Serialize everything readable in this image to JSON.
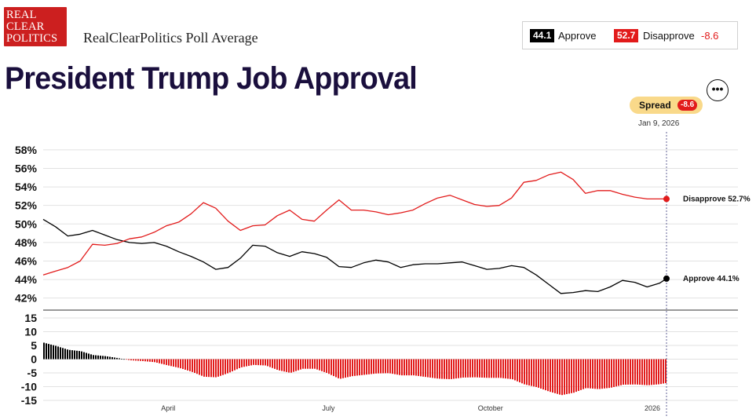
{
  "header": {
    "logo_lines": [
      "REAL",
      "CLEAR",
      "POLITICS"
    ],
    "subtitle": "RealClearPolitics Poll Average",
    "title": "President Trump Job Approval"
  },
  "legend": {
    "approve_value": "44.1",
    "approve_label": "Approve",
    "disapprove_value": "52.7",
    "disapprove_label": "Disapprove",
    "spread_value": "-8.6"
  },
  "spread_pill": {
    "label": "Spread",
    "value": "-8.6"
  },
  "current_date": "Jan 9, 2026",
  "colors": {
    "approve": "#000000",
    "disapprove": "#e21b1b",
    "title": "#1a0f3d",
    "pill": "#f9d98a"
  },
  "icons": {
    "menu": "more-horizontal-icon"
  },
  "chart_data": {
    "type": "line",
    "x_ticks": [
      "April",
      "July",
      "October",
      "2026"
    ],
    "x": [
      "2025-01-20",
      "2025-01-27",
      "2025-02-03",
      "2025-02-10",
      "2025-02-17",
      "2025-02-24",
      "2025-03-03",
      "2025-03-10",
      "2025-03-17",
      "2025-03-24",
      "2025-03-31",
      "2025-04-07",
      "2025-04-14",
      "2025-04-21",
      "2025-04-28",
      "2025-05-05",
      "2025-05-12",
      "2025-05-19",
      "2025-05-26",
      "2025-06-02",
      "2025-06-09",
      "2025-06-16",
      "2025-06-23",
      "2025-06-30",
      "2025-07-07",
      "2025-07-14",
      "2025-07-21",
      "2025-07-28",
      "2025-08-04",
      "2025-08-11",
      "2025-08-18",
      "2025-08-25",
      "2025-09-01",
      "2025-09-08",
      "2025-09-15",
      "2025-09-22",
      "2025-09-29",
      "2025-10-06",
      "2025-10-13",
      "2025-10-20",
      "2025-10-27",
      "2025-11-03",
      "2025-11-10",
      "2025-11-17",
      "2025-11-24",
      "2025-12-01",
      "2025-12-08",
      "2025-12-15",
      "2025-12-22",
      "2025-12-29",
      "2026-01-05",
      "2026-01-09"
    ],
    "series": [
      {
        "name": "Approve",
        "end_label": "Approve 44.1%",
        "color": "#000000",
        "values": [
          50.5,
          49.7,
          48.7,
          48.9,
          49.3,
          48.8,
          48.3,
          48.0,
          47.9,
          48.0,
          47.6,
          47.0,
          46.5,
          45.9,
          45.1,
          45.3,
          46.3,
          47.7,
          47.6,
          46.9,
          46.5,
          47.0,
          46.8,
          46.4,
          45.4,
          45.3,
          45.8,
          46.1,
          45.9,
          45.3,
          45.6,
          45.7,
          45.7,
          45.8,
          45.9,
          45.5,
          45.1,
          45.2,
          45.5,
          45.3,
          44.5,
          43.5,
          42.5,
          42.6,
          42.8,
          42.7,
          43.2,
          43.9,
          43.7,
          43.2,
          43.6,
          44.1
        ]
      },
      {
        "name": "Disapprove",
        "end_label": "Disapprove 52.7%",
        "color": "#e21b1b",
        "values": [
          44.5,
          44.9,
          45.3,
          46.0,
          47.8,
          47.7,
          47.9,
          48.4,
          48.6,
          49.1,
          49.8,
          50.2,
          51.1,
          52.3,
          51.7,
          50.3,
          49.3,
          49.8,
          49.9,
          50.9,
          51.5,
          50.5,
          50.3,
          51.5,
          52.6,
          51.5,
          51.5,
          51.3,
          51.0,
          51.2,
          51.5,
          52.2,
          52.8,
          53.1,
          52.6,
          52.1,
          51.9,
          52.0,
          52.8,
          54.5,
          54.7,
          55.3,
          55.6,
          54.8,
          53.3,
          53.6,
          53.6,
          53.2,
          52.9,
          52.7,
          52.7,
          52.7
        ]
      },
      {
        "name": "Spread",
        "color": "#e21b1b",
        "values": [
          6.0,
          4.8,
          3.4,
          2.9,
          1.5,
          1.1,
          0.4,
          -0.4,
          -0.7,
          -1.1,
          -2.2,
          -3.2,
          -4.6,
          -6.4,
          -6.6,
          -5.0,
          -3.0,
          -2.1,
          -2.3,
          -4.0,
          -5.0,
          -3.5,
          -3.5,
          -5.1,
          -7.2,
          -6.2,
          -5.7,
          -5.2,
          -5.1,
          -5.9,
          -5.9,
          -6.5,
          -7.1,
          -7.3,
          -6.7,
          -6.6,
          -6.8,
          -6.8,
          -7.3,
          -9.2,
          -10.2,
          -11.8,
          -13.1,
          -12.2,
          -10.5,
          -10.9,
          -10.4,
          -9.3,
          -9.2,
          -9.5,
          -9.1,
          -8.6
        ]
      }
    ],
    "y_ticks_main": [
      "58%",
      "56%",
      "54%",
      "52%",
      "50%",
      "48%",
      "46%",
      "44%",
      "42%"
    ],
    "ylim_main": [
      40.7,
      58.5
    ],
    "y_ticks_spread": [
      "15",
      "10",
      "5",
      "0",
      "-5",
      "-10",
      "-15"
    ],
    "ylim_spread": [
      -15,
      15
    ],
    "grid": true,
    "legend_placement": "top-right"
  }
}
